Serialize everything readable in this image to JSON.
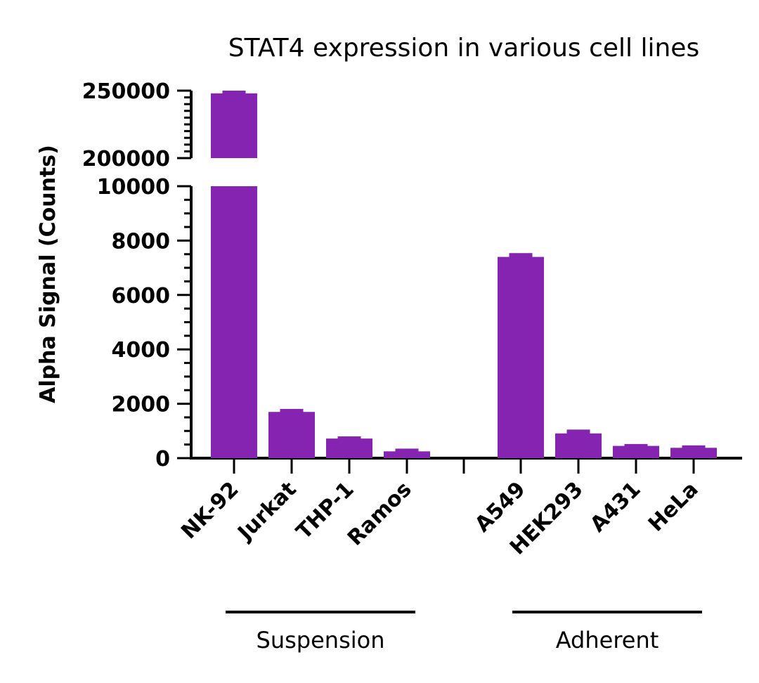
{
  "colors": {
    "bar": "#8424b0",
    "axis": "#000000",
    "background": "#ffffff"
  },
  "chart_data": {
    "type": "bar",
    "title": "STAT4 expression in various cell lines",
    "ylabel": "Alpha Signal (Counts)",
    "xlabel": "",
    "y_axis_break": {
      "lower_range": [
        0,
        10000
      ],
      "upper_range": [
        200000,
        250000
      ]
    },
    "y_ticks_lower": [
      "0",
      "2000",
      "4000",
      "6000",
      "8000",
      "10000"
    ],
    "y_ticks_upper": [
      "200000",
      "250000"
    ],
    "categories": [
      "NK-92",
      "Jurkat",
      "THP-1",
      "Ramos",
      "A549",
      "HEK293",
      "A431",
      "HeLa"
    ],
    "values": [
      248000,
      1700,
      720,
      250,
      7400,
      910,
      450,
      380
    ],
    "error_upper": [
      250000,
      1810,
      800,
      350,
      7540,
      1050,
      520,
      470
    ],
    "groups": [
      {
        "label": "Suspension",
        "categories": [
          "NK-92",
          "Jurkat",
          "THP-1",
          "Ramos"
        ]
      },
      {
        "label": "Adherent",
        "categories": [
          "A549",
          "HEK293",
          "A431",
          "HeLa"
        ]
      }
    ],
    "grid": false,
    "legend": "none"
  }
}
